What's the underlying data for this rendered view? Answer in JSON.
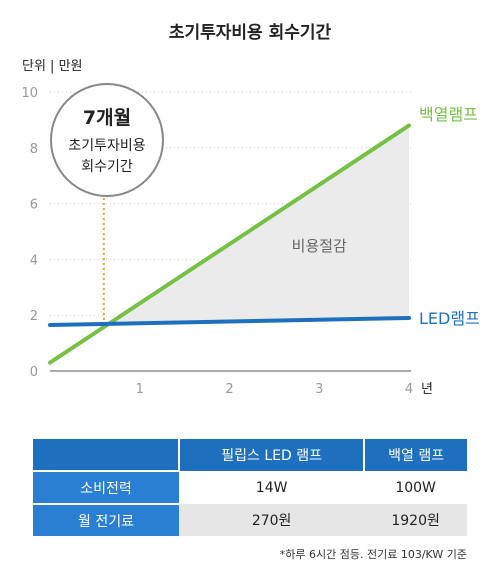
{
  "title": "초기투자비용 회수기간",
  "unit_label": "단위 | 만원",
  "chart_data": {
    "type": "line",
    "xlabel": "",
    "x_unit": "년",
    "ylabel": "",
    "xlim": [
      0,
      4
    ],
    "ylim": [
      0,
      10
    ],
    "x_ticks": [
      1,
      2,
      3,
      4
    ],
    "y_ticks": [
      0,
      2,
      4,
      6,
      8,
      10
    ],
    "grid": "horizontal-dotted",
    "series": [
      {
        "name": "백열램프",
        "color": "#76c043",
        "x": [
          0,
          4
        ],
        "y": [
          0.3,
          8.8
        ]
      },
      {
        "name": "LED램프",
        "color": "#1f6fbf",
        "x": [
          0,
          4
        ],
        "y": [
          1.65,
          1.9
        ]
      }
    ],
    "shaded_region_label": "비용절감",
    "callout": {
      "value": "7개월",
      "line1": "초기투자비용",
      "line2": "회수기간",
      "x": 0.6
    }
  },
  "table": {
    "headers": [
      "",
      "필립스 LED 램프",
      "백열 램프"
    ],
    "rows": [
      {
        "label": "소비전력",
        "led": "14W",
        "incandescent": "100W"
      },
      {
        "label": "월 전기료",
        "led": "270원",
        "incandescent": "1920원"
      }
    ]
  },
  "footnote": "*하루 6시간 점등. 전기료 103/KW 기준"
}
